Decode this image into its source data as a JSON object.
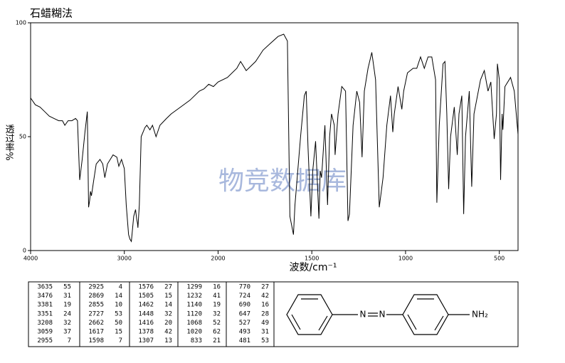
{
  "chart_data": {
    "type": "line",
    "title": "石蜡糊法",
    "xlabel": "波数/cm⁻¹",
    "ylabel": "透过率%",
    "watermark": "物竞数据库",
    "color": "#000000",
    "xlim": [
      4000,
      400
    ],
    "xticks": [
      4000,
      3000,
      2000,
      1500,
      1000,
      500
    ],
    "ylim": [
      0,
      100
    ],
    "yticks": [
      0,
      50,
      100
    ],
    "x": [
      4000,
      3950,
      3900,
      3850,
      3800,
      3750,
      3700,
      3660,
      3635,
      3600,
      3560,
      3520,
      3500,
      3476,
      3450,
      3420,
      3395,
      3381,
      3370,
      3361,
      3351,
      3330,
      3300,
      3260,
      3230,
      3208,
      3180,
      3120,
      3080,
      3059,
      3030,
      3000,
      2980,
      2955,
      2940,
      2925,
      2900,
      2880,
      2869,
      2860,
      2855,
      2840,
      2820,
      2780,
      2760,
      2727,
      2700,
      2662,
      2620,
      2550,
      2500,
      2400,
      2300,
      2200,
      2150,
      2100,
      2050,
      2000,
      1950,
      1900,
      1880,
      1850,
      1800,
      1760,
      1720,
      1680,
      1650,
      1630,
      1617,
      1598,
      1590,
      1560,
      1540,
      1530,
      1520,
      1505,
      1495,
      1480,
      1462,
      1455,
      1448,
      1430,
      1416,
      1405,
      1395,
      1380,
      1376,
      1360,
      1340,
      1320,
      1307,
      1299,
      1280,
      1260,
      1245,
      1232,
      1220,
      1200,
      1180,
      1160,
      1140,
      1120,
      1100,
      1080,
      1068,
      1060,
      1040,
      1020,
      1010,
      990,
      960,
      940,
      920,
      900,
      880,
      860,
      840,
      833,
      820,
      800,
      790,
      780,
      770,
      760,
      740,
      724,
      715,
      700,
      690,
      680,
      660,
      647,
      635,
      600,
      580,
      560,
      545,
      527,
      515,
      510,
      500,
      493,
      485,
      481,
      470,
      440,
      420,
      400
    ],
    "values": [
      67,
      64,
      63,
      61,
      59,
      58,
      57,
      57,
      55,
      57,
      57,
      58,
      57,
      31,
      40,
      52,
      61,
      19,
      22,
      26,
      24,
      30,
      38,
      40,
      38,
      32,
      38,
      42,
      41,
      37,
      40,
      36,
      20,
      7,
      5,
      4,
      15,
      18,
      14,
      12,
      10,
      20,
      50,
      54,
      55,
      53,
      55,
      50,
      55,
      58,
      60,
      63,
      66,
      70,
      71,
      73,
      72,
      74,
      76,
      80,
      83,
      79,
      83,
      88,
      91,
      94,
      95,
      92,
      15,
      7,
      20,
      50,
      68,
      70,
      45,
      15,
      35,
      48,
      14,
      35,
      32,
      55,
      20,
      50,
      60,
      55,
      42,
      60,
      72,
      70,
      13,
      16,
      55,
      70,
      65,
      41,
      70,
      80,
      87,
      75,
      19,
      32,
      55,
      68,
      52,
      60,
      72,
      62,
      70,
      78,
      80,
      80,
      85,
      80,
      85,
      85,
      75,
      21,
      55,
      82,
      83,
      60,
      27,
      50,
      63,
      42,
      60,
      68,
      16,
      50,
      70,
      28,
      60,
      75,
      79,
      70,
      74,
      49,
      60,
      82,
      75,
      31,
      60,
      53,
      72,
      76,
      70,
      51
    ]
  },
  "peak_table": {
    "columns": [
      [
        [
          3635,
          55
        ],
        [
          3476,
          31
        ],
        [
          3381,
          19
        ],
        [
          3351,
          24
        ],
        [
          3208,
          32
        ],
        [
          3059,
          37
        ],
        [
          2955,
          7
        ]
      ],
      [
        [
          2925,
          4
        ],
        [
          2869,
          14
        ],
        [
          2855,
          10
        ],
        [
          2727,
          53
        ],
        [
          2662,
          50
        ],
        [
          1617,
          15
        ],
        [
          1598,
          7
        ]
      ],
      [
        [
          1576,
          27
        ],
        [
          1505,
          15
        ],
        [
          1462,
          14
        ],
        [
          1448,
          32
        ],
        [
          1416,
          20
        ],
        [
          1378,
          42
        ],
        [
          1307,
          13
        ]
      ],
      [
        [
          1299,
          16
        ],
        [
          1232,
          41
        ],
        [
          1140,
          19
        ],
        [
          1120,
          32
        ],
        [
          1068,
          52
        ],
        [
          1020,
          62
        ],
        [
          833,
          21
        ]
      ],
      [
        [
          770,
          27
        ],
        [
          724,
          42
        ],
        [
          690,
          16
        ],
        [
          647,
          28
        ],
        [
          527,
          49
        ],
        [
          493,
          31
        ],
        [
          481,
          53
        ]
      ]
    ]
  },
  "structure": {
    "atoms": [
      "N",
      "N",
      "NH₂"
    ]
  }
}
